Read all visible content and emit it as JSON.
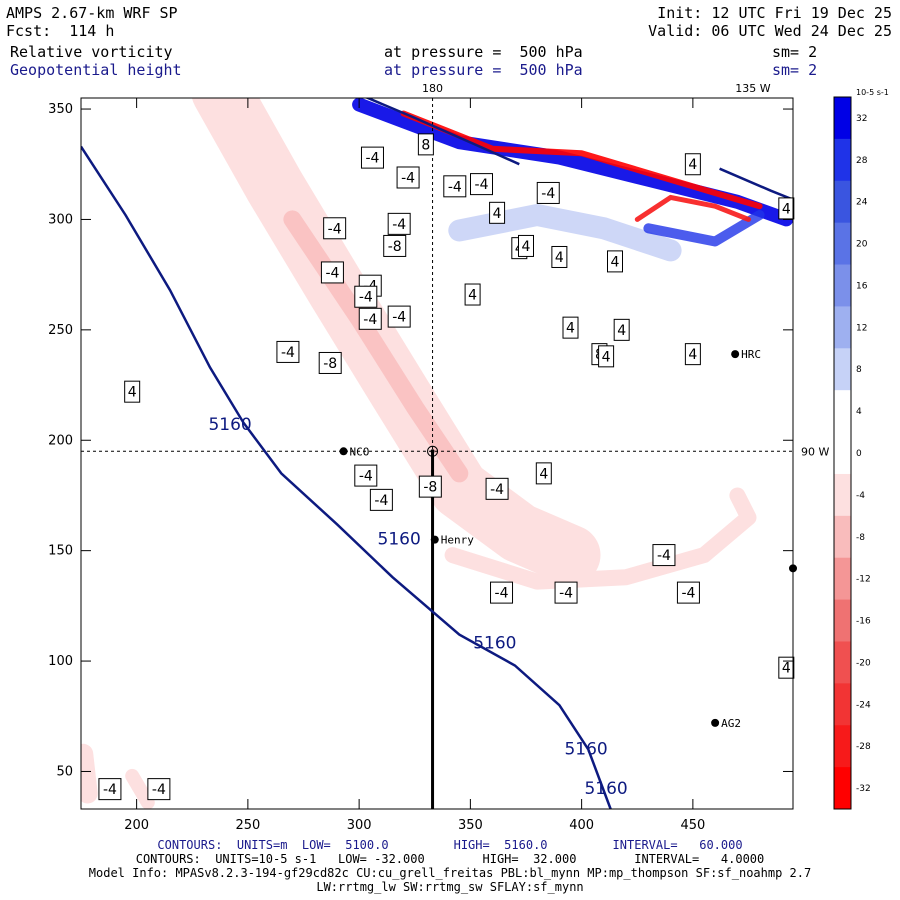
{
  "header": {
    "model_title": "AMPS 2.67-km WRF SP",
    "forecast": "Fcst:  114 h",
    "init": "Init: 12 UTC Fri 19 Dec 25",
    "valid": "Valid: 06 UTC Wed 24 Dec 25",
    "field1_name": "Relative vorticity",
    "field1_level": "at pressure =  500 hPa",
    "field1_sm": "sm= 2",
    "field2_name": "Geopotential height",
    "field2_level": "at pressure =  500 hPa",
    "field2_sm": "sm= 2"
  },
  "colors": {
    "height_contour": "#0d1a80",
    "text_blue": "#1a1a8c",
    "positive": "#0000e6",
    "negative": "#ff0000"
  },
  "chart_data": {
    "type": "heatmap",
    "x_ticks": [
      "200",
      "250",
      "300",
      "350",
      "400",
      "450"
    ],
    "y_ticks": [
      "350",
      "300",
      "250",
      "200",
      "150",
      "100",
      "50"
    ],
    "xlim": [
      175,
      495
    ],
    "ylim": [
      33,
      355
    ],
    "top_labels": [
      "180",
      "135 W"
    ],
    "side_label": "90 W",
    "colorbar": {
      "unit": "10-5 s-1",
      "levels": [
        32,
        28,
        24,
        20,
        16,
        12,
        8,
        4,
        0,
        -4,
        -8,
        -12,
        -16,
        -20,
        -24,
        -28,
        -32
      ],
      "colors": [
        "#0000e6",
        "#1f33e8",
        "#3a55e0",
        "#5a73e6",
        "#7b90ea",
        "#9eb0f0",
        "#c6d2f7",
        "#ffffff",
        "#ffffff",
        "#fde0e0",
        "#f9bcbc",
        "#f49696",
        "#ef7272",
        "#f05050",
        "#f23434",
        "#f71a1a",
        "#ff0000"
      ]
    },
    "stations": [
      {
        "name": "NCO",
        "x": 293,
        "y": 195
      },
      {
        "name": "Henry",
        "x": 334,
        "y": 155
      },
      {
        "name": "HRC",
        "x": 469,
        "y": 239
      },
      {
        "name": "AG2",
        "x": 460,
        "y": 72
      },
      {
        "name": "",
        "x": 495,
        "y": 142
      }
    ],
    "cross_marker": {
      "x": 333,
      "y": 195
    },
    "height_contours": [
      {
        "value": "5160",
        "points": [
          [
            175,
            333
          ],
          [
            195,
            302
          ],
          [
            215,
            268
          ],
          [
            233,
            233
          ],
          [
            248,
            208
          ],
          [
            265,
            185
          ],
          [
            290,
            162
          ],
          [
            315,
            138
          ],
          [
            345,
            112
          ],
          [
            370,
            98
          ],
          [
            390,
            80
          ],
          [
            403,
            60
          ],
          [
            413,
            33
          ]
        ]
      },
      {
        "value": "5160",
        "points": [
          [
            297,
            358
          ],
          [
            325,
            346
          ],
          [
            352,
            334
          ],
          [
            372,
            325
          ]
        ]
      },
      {
        "value": "5160",
        "points": [
          [
            462,
            323
          ],
          [
            485,
            313
          ],
          [
            495,
            309
          ]
        ]
      }
    ],
    "height_labels": [
      {
        "text": "5160",
        "x": 242,
        "y": 207
      },
      {
        "text": "5160",
        "x": 318,
        "y": 155
      },
      {
        "text": "5160",
        "x": 361,
        "y": 108
      },
      {
        "text": "5160",
        "x": 402,
        "y": 60
      },
      {
        "text": "5160",
        "x": 411,
        "y": 42
      }
    ],
    "vort_labels": [
      {
        "text": "-4",
        "x": 306,
        "y": 328
      },
      {
        "text": "-4",
        "x": 322,
        "y": 319
      },
      {
        "text": "-4",
        "x": 343,
        "y": 315
      },
      {
        "text": "-4",
        "x": 355,
        "y": 316
      },
      {
        "text": "-4",
        "x": 385,
        "y": 312
      },
      {
        "text": "8",
        "x": 330,
        "y": 334
      },
      {
        "text": "-4",
        "x": 289,
        "y": 296
      },
      {
        "text": "-4",
        "x": 318,
        "y": 298
      },
      {
        "text": "-4",
        "x": 288,
        "y": 276
      },
      {
        "text": "-4",
        "x": 305,
        "y": 270
      },
      {
        "text": "-8",
        "x": 316,
        "y": 288
      },
      {
        "text": "4",
        "x": 362,
        "y": 303
      },
      {
        "text": "4",
        "x": 372,
        "y": 287
      },
      {
        "text": "4",
        "x": 375,
        "y": 288
      },
      {
        "text": "-4",
        "x": 305,
        "y": 255
      },
      {
        "text": "-4",
        "x": 303,
        "y": 265
      },
      {
        "text": "-4",
        "x": 318,
        "y": 256
      },
      {
        "text": "4",
        "x": 351,
        "y": 266
      },
      {
        "text": "4",
        "x": 390,
        "y": 283
      },
      {
        "text": "4",
        "x": 415,
        "y": 281
      },
      {
        "text": "8",
        "x": 408,
        "y": 239
      },
      {
        "text": "4",
        "x": 395,
        "y": 251
      },
      {
        "text": "4",
        "x": 418,
        "y": 250
      },
      {
        "text": "-4",
        "x": 268,
        "y": 240
      },
      {
        "text": "-8",
        "x": 287,
        "y": 235
      },
      {
        "text": "4",
        "x": 198,
        "y": 222
      },
      {
        "text": "4",
        "x": 411,
        "y": 238
      },
      {
        "text": "4",
        "x": 450,
        "y": 239
      },
      {
        "text": "-4",
        "x": 303,
        "y": 184
      },
      {
        "text": "-4",
        "x": 310,
        "y": 173
      },
      {
        "text": "-8",
        "x": 332,
        "y": 179
      },
      {
        "text": "-4",
        "x": 362,
        "y": 178
      },
      {
        "text": "4",
        "x": 383,
        "y": 185
      },
      {
        "text": "-4",
        "x": 437,
        "y": 148
      },
      {
        "text": "-4",
        "x": 364,
        "y": 131
      },
      {
        "text": "-4",
        "x": 393,
        "y": 131
      },
      {
        "text": "-4",
        "x": 448,
        "y": 131
      },
      {
        "text": "4",
        "x": 492,
        "y": 97
      },
      {
        "text": "4",
        "x": 450,
        "y": 325
      },
      {
        "text": "4",
        "x": 492,
        "y": 305
      },
      {
        "text": "-4",
        "x": 188,
        "y": 42
      },
      {
        "text": "-4",
        "x": 210,
        "y": 42
      }
    ]
  },
  "footer": {
    "line1": "CONTOURS:  UNITS=m  LOW=  5100.0         HIGH=  5160.0         INTERVAL=   60.000",
    "line2": "CONTOURS:  UNITS=10-5 s-1   LOW= -32.000        HIGH=  32.000        INTERVAL=   4.0000",
    "line3": "Model Info: MPASv8.2.3-194-gf29cd82c CU:cu_grell_freitas PBL:bl_mynn MP:mp_thompson SF:sf_noahmp 2.7",
    "line4": "LW:rrtmg_lw SW:rrtmg_sw SFLAY:sf_mynn"
  }
}
